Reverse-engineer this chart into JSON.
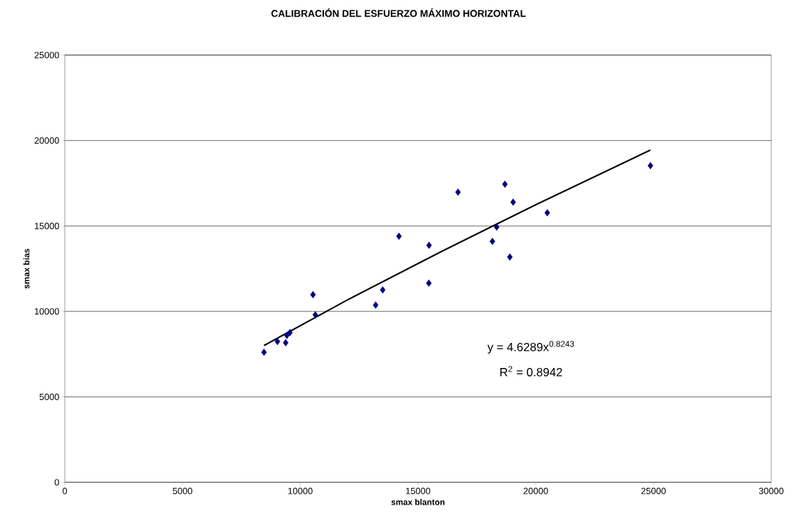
{
  "chart_data": {
    "type": "scatter",
    "title": "CALIBRACIÓN DEL ESFUERZO MÁXIMO HORIZONTAL",
    "xlabel": "smax blanton",
    "ylabel": "smax bias",
    "xlim": [
      0,
      30000
    ],
    "ylim": [
      0,
      25000
    ],
    "xticks": [
      0,
      5000,
      10000,
      15000,
      20000,
      25000,
      30000
    ],
    "yticks": [
      0,
      5000,
      10000,
      15000,
      20000,
      25000
    ],
    "grid": "y",
    "series": [
      {
        "color": "#000080",
        "marker": "diamond",
        "x": [
          8460,
          9030,
          9380,
          9430,
          9560,
          10540,
          10640,
          13200,
          13500,
          14190,
          15470,
          15460,
          16700,
          18690,
          19040,
          20490,
          18340,
          18160,
          18900,
          24870
        ],
        "values": [
          7610,
          8240,
          8170,
          8600,
          8760,
          10980,
          9800,
          10370,
          11260,
          14400,
          13870,
          11650,
          16980,
          17440,
          16390,
          15770,
          14940,
          14100,
          13180,
          18530
        ]
      },
      {
        "type": "line",
        "color": "#000000",
        "marker": "none",
        "x": [
          8460,
          12000,
          16000,
          20000,
          24870
        ],
        "values": [
          8000,
          10670,
          13510,
          16240,
          19440
        ]
      }
    ],
    "annotations": [
      "y = 4.6289x$^{0.8243}$",
      "R$^{2}$ = 0.8942"
    ]
  }
}
